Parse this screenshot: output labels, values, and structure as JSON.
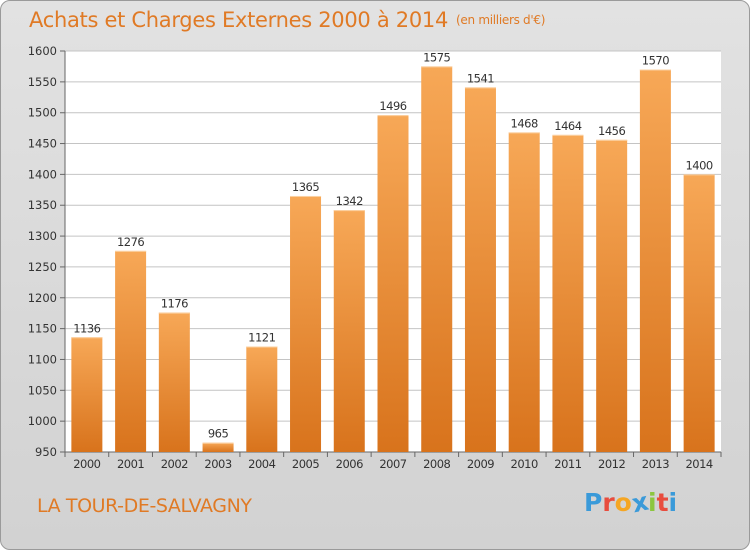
{
  "header": {
    "title": "Achats et Charges Externes 2000 à 2014",
    "unit": "(en milliers d'€)"
  },
  "footer": {
    "city": "LA TOUR-DE-SALVAGNY",
    "logo_letters": [
      "P",
      "r",
      "o",
      "x",
      "i",
      "t",
      "i"
    ],
    "logo_colors": [
      "#3a9ad9",
      "#e84c3d",
      "#f5a623",
      "#3a9ad9",
      "#8cc63f",
      "#e84c3d",
      "#3a9ad9"
    ]
  },
  "colors": {
    "bar_top": "#f7a857",
    "bar_bottom": "#d8731c",
    "accent": "#e07a25",
    "grid": "#c4c4c4",
    "plot_bg": "#ffffff"
  },
  "chart_data": {
    "type": "bar",
    "title": "Achats et Charges Externes 2000 à 2014",
    "subtitle": "(en milliers d'€)",
    "categories": [
      "2000",
      "2001",
      "2002",
      "2003",
      "2004",
      "2005",
      "2006",
      "2007",
      "2008",
      "2009",
      "2010",
      "2011",
      "2012",
      "2013",
      "2014"
    ],
    "values": [
      1136,
      1276,
      1176,
      965,
      1121,
      1365,
      1342,
      1496,
      1575,
      1541,
      1468,
      1464,
      1456,
      1570,
      1400
    ],
    "ylim": [
      950,
      1600
    ],
    "yticks": [
      950,
      1000,
      1050,
      1100,
      1150,
      1200,
      1250,
      1300,
      1350,
      1400,
      1450,
      1500,
      1550,
      1600
    ],
    "grid": true,
    "data_labels": true
  }
}
